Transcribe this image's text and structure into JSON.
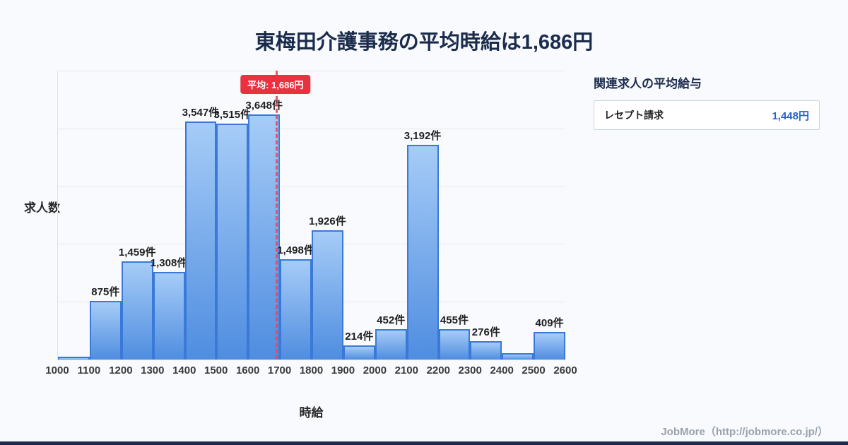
{
  "page": {
    "title": "東梅田介護事務の平均時給は1,686円",
    "footer": "JobMore（http://jobmore.co.jp/）"
  },
  "chart_data": {
    "type": "bar",
    "title": "東梅田介護事務の平均時給は1,686円",
    "xlabel": "時給",
    "ylabel": "求人数",
    "x_ticks": [
      "1000",
      "1100",
      "1200",
      "1300",
      "1400",
      "1500",
      "1600",
      "1700",
      "1800",
      "1900",
      "2000",
      "2100",
      "2200",
      "2300",
      "2400",
      "2500",
      "2600"
    ],
    "categories": [
      "1000-1100",
      "1100-1200",
      "1200-1300",
      "1300-1400",
      "1400-1500",
      "1500-1600",
      "1600-1700",
      "1700-1800",
      "1800-1900",
      "1900-2000",
      "2000-2100",
      "2100-2200",
      "2200-2300",
      "2300-2400",
      "2400-2500",
      "2500-2600"
    ],
    "values": [
      40,
      875,
      1459,
      1308,
      3547,
      3515,
      3648,
      1498,
      1926,
      214,
      452,
      3192,
      455,
      276,
      100,
      409
    ],
    "labels": [
      "",
      "875件",
      "1,459件",
      "1,308件",
      "3,547件",
      "3,515件",
      "3,648件",
      "1,498件",
      "1,926件",
      "214件",
      "452件",
      "3,192件",
      "455件",
      "276件",
      "",
      "409件"
    ],
    "ylim": [
      0,
      4300
    ],
    "x_range": [
      1000,
      2600
    ],
    "grid": true,
    "grid_divisions": 5,
    "legend": "none",
    "average": {
      "value": 1686,
      "label": "平均: 1,686円"
    },
    "colors": {
      "bar_fill_top": "#a6ccf7",
      "bar_fill_bottom": "#4f8de0",
      "bar_border": "#3a79d8",
      "average_line": "#e8495c",
      "average_badge": "#e8323f",
      "title": "#1a2b4c"
    }
  },
  "side_panel": {
    "title": "関連求人の平均給与",
    "items": [
      {
        "label": "レセプト請求",
        "value": "1,448円"
      }
    ],
    "value_color": "#2563c9"
  }
}
